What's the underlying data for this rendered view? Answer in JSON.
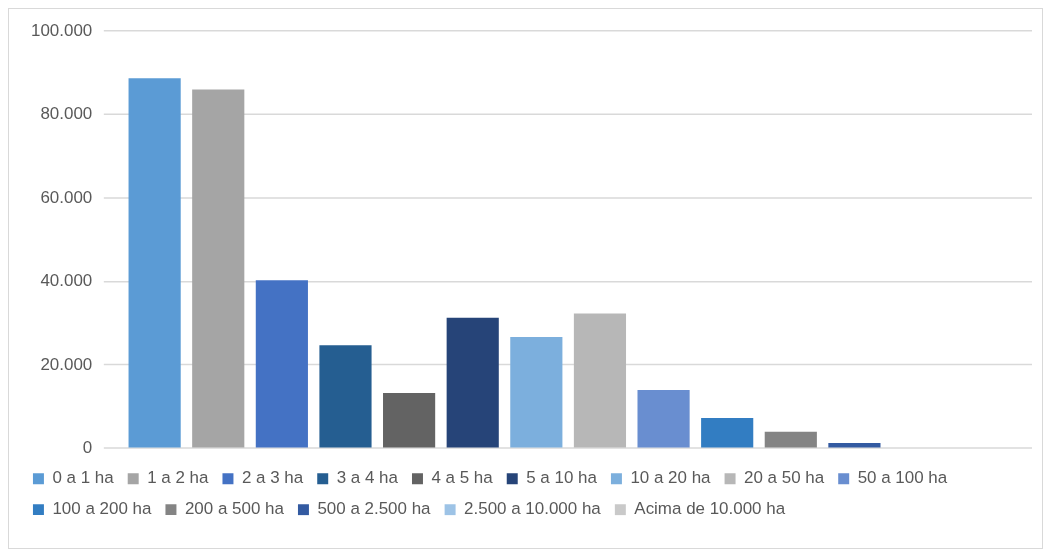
{
  "chart_data": {
    "type": "bar",
    "categories": [
      null
    ],
    "series": [
      {
        "name": "0 a 1 ha",
        "color": "#5b9bd5",
        "values": [
          88700
        ]
      },
      {
        "name": "1 a 2 ha",
        "color": "#a5a5a5",
        "values": [
          86000
        ]
      },
      {
        "name": "2 a 3 ha",
        "color": "#4472c4",
        "values": [
          40300
        ]
      },
      {
        "name": "3 a 4 ha",
        "color": "#255e91",
        "values": [
          24700
        ]
      },
      {
        "name": "4 a 5 ha",
        "color": "#636363",
        "values": [
          13300
        ]
      },
      {
        "name": "5 a 10 ha",
        "color": "#264478",
        "values": [
          31300
        ]
      },
      {
        "name": "10 a 20 ha",
        "color": "#7cafdd",
        "values": [
          26700
        ]
      },
      {
        "name": "20 a 50 ha",
        "color": "#b7b7b7",
        "values": [
          32300
        ]
      },
      {
        "name": "50 a 100 ha",
        "color": "#698ed0",
        "values": [
          14000
        ]
      },
      {
        "name": "100 a 200 ha",
        "color": "#327dc2",
        "values": [
          7300
        ]
      },
      {
        "name": "200 a 500 ha",
        "color": "#848484",
        "values": [
          4000
        ]
      },
      {
        "name": "500 a 2.500 ha",
        "color": "#335aa1",
        "values": [
          1300
        ]
      },
      {
        "name": "2.500 a 10.000 ha",
        "color": "#9dc3e6",
        "values": [
          0
        ]
      },
      {
        "name": "Acima de 10.000 ha",
        "color": "#c9c9c9",
        "values": [
          0
        ]
      }
    ],
    "ylim": [
      0,
      100000
    ],
    "yticks": [
      {
        "value": 0,
        "label": "0"
      },
      {
        "value": 20000,
        "label": "20.000"
      },
      {
        "value": 40000,
        "label": "40.000"
      },
      {
        "value": 60000,
        "label": "60.000"
      },
      {
        "value": 80000,
        "label": "80.000"
      },
      {
        "value": 100000,
        "label": "100.000"
      }
    ],
    "grid": "y",
    "legend": "bottom"
  }
}
